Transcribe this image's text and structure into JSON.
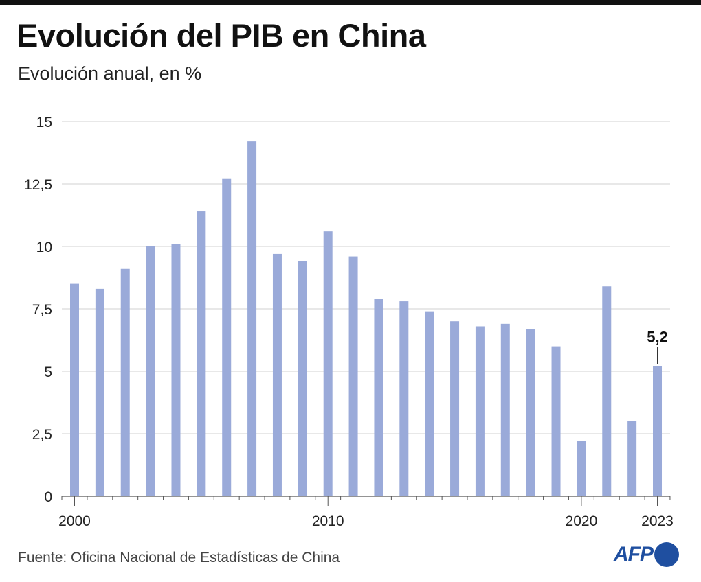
{
  "title": "Evolución del PIB en China",
  "subtitle": "Evolución anual, en %",
  "source": "Fuente: Oficina Nacional de Estadísticas de China",
  "logo": "AFP",
  "colors": {
    "bar": "#9aaad9",
    "grid": "#d0d0d0",
    "logo": "#1f4fa0"
  },
  "chart_data": {
    "type": "bar",
    "categories": [
      2000,
      2001,
      2002,
      2003,
      2004,
      2005,
      2006,
      2007,
      2008,
      2009,
      2010,
      2011,
      2012,
      2013,
      2014,
      2015,
      2016,
      2017,
      2018,
      2019,
      2020,
      2021,
      2022,
      2023
    ],
    "values": [
      8.5,
      8.3,
      9.1,
      10.0,
      10.1,
      11.4,
      12.7,
      14.2,
      9.7,
      9.4,
      10.6,
      9.6,
      7.9,
      7.8,
      7.4,
      7.0,
      6.8,
      6.9,
      6.7,
      6.0,
      2.2,
      8.4,
      3.0,
      5.2
    ],
    "ylim": [
      0,
      15
    ],
    "yticks": [
      0,
      2.5,
      5,
      7.5,
      10,
      12.5,
      15
    ],
    "ytick_labels": [
      "0",
      "2,5",
      "5",
      "7,5",
      "10",
      "12,5",
      "15"
    ],
    "xtick_labels": {
      "2000": "2000",
      "2010": "2010",
      "2020": "2020",
      "2023": "2023"
    },
    "annotation": {
      "category": 2023,
      "label": "5,2"
    },
    "grid": true,
    "legend": "none"
  }
}
